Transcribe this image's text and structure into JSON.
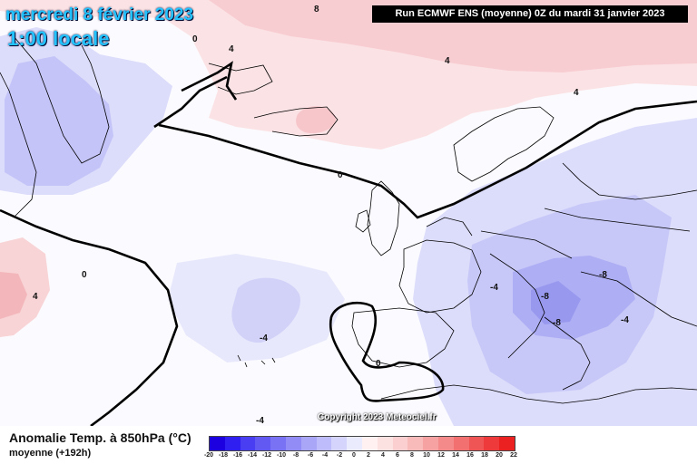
{
  "header": {
    "date": "mercredi 8 février 2023",
    "time": "1:00 locale",
    "run": "Run ECMWF ENS (moyenne) 0Z du mardi 31 janvier 2023"
  },
  "copyright": "Copyright 2023 Meteociel.fr",
  "footer": {
    "variable": "Anomalie Temp. à 850hPa (°C)",
    "subtitle": "moyenne   (+192h)"
  },
  "legend": {
    "ticks": [
      "-20",
      "-18",
      "-16",
      "-14",
      "-12",
      "-10",
      "-8",
      "-6",
      "-4",
      "-2",
      "0",
      "2",
      "4",
      "6",
      "8",
      "10",
      "12",
      "14",
      "16",
      "18",
      "20",
      "22"
    ],
    "colors": [
      "#1c00e0",
      "#2f1ff0",
      "#4a3ef2",
      "#6159f2",
      "#7a72f4",
      "#918cf6",
      "#a9a6f8",
      "#bebcfa",
      "#d4d4fc",
      "#ebebfe",
      "#fff1f1",
      "#fde2e2",
      "#fbcfcf",
      "#f9baba",
      "#f7a2a2",
      "#f58a8a",
      "#f37070",
      "#f05555",
      "#ee3a3a",
      "#eb2020"
    ]
  },
  "contour_labels": [
    {
      "id": "l-top-8",
      "text": "8"
    },
    {
      "id": "l-greenland-0",
      "text": "0"
    },
    {
      "id": "l-greenland-4",
      "text": "4"
    },
    {
      "id": "l-north-4",
      "text": "4"
    },
    {
      "id": "l-scand-4",
      "text": "4"
    },
    {
      "id": "l-atl-0",
      "text": "0"
    },
    {
      "id": "l-can-0",
      "text": "0"
    },
    {
      "id": "l-can-4",
      "text": "4"
    },
    {
      "id": "l-azores-4",
      "text": "-4"
    },
    {
      "id": "l-spain-0",
      "text": "0"
    },
    {
      "id": "l-bottom-4",
      "text": "-4"
    },
    {
      "id": "l-balk-8",
      "text": "-8"
    },
    {
      "id": "l-bal2-8",
      "text": "-8"
    },
    {
      "id": "l-greece-4",
      "text": "-4"
    },
    {
      "id": "l-italy-4",
      "text": "-4"
    },
    {
      "id": "l-hung-8",
      "text": "-8"
    }
  ]
}
